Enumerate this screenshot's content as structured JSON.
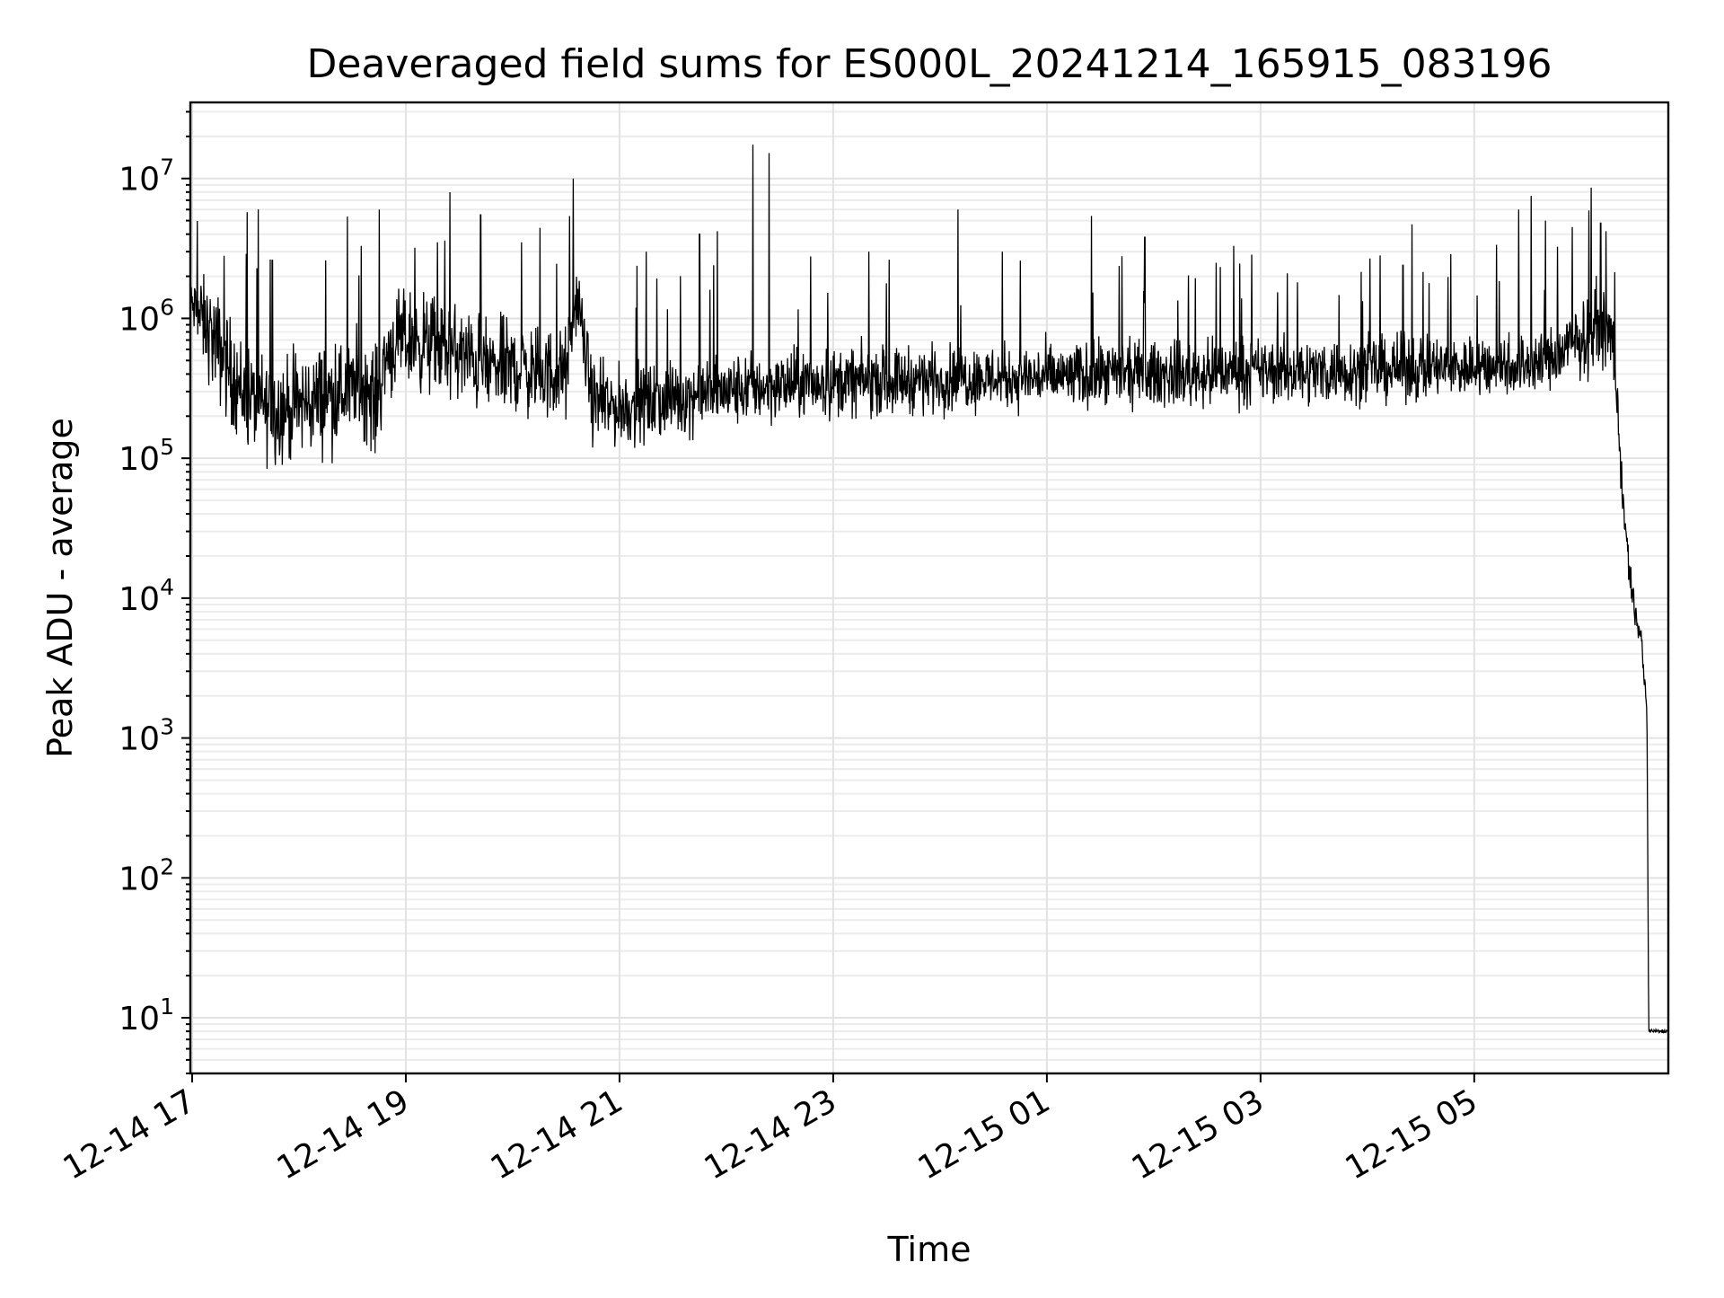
{
  "chart_data": {
    "type": "line",
    "title": "Deaveraged field sums for ES000L_20241214_165915_083196",
    "xlabel": "Time",
    "ylabel": "Peak ADU - average",
    "yscale": "log",
    "ylim": [
      4,
      35000000
    ],
    "xlim": [
      "2024-12-14 16:59",
      "2024-12-15 06:49"
    ],
    "grid": true,
    "y_ticks": [
      {
        "base": "10",
        "exp": "1",
        "value": 10
      },
      {
        "base": "10",
        "exp": "2",
        "value": 100
      },
      {
        "base": "10",
        "exp": "3",
        "value": 1000
      },
      {
        "base": "10",
        "exp": "4",
        "value": 10000
      },
      {
        "base": "10",
        "exp": "5",
        "value": 100000
      },
      {
        "base": "10",
        "exp": "6",
        "value": 1000000
      },
      {
        "base": "10",
        "exp": "7",
        "value": 10000000
      }
    ],
    "x_ticks": [
      {
        "label": "12-14 17",
        "value": "2024-12-14 17:00"
      },
      {
        "label": "12-14 19",
        "value": "2024-12-14 19:00"
      },
      {
        "label": "12-14 21",
        "value": "2024-12-14 21:00"
      },
      {
        "label": "12-14 23",
        "value": "2024-12-14 23:00"
      },
      {
        "label": "12-15 01",
        "value": "2024-12-15 01:00"
      },
      {
        "label": "12-15 03",
        "value": "2024-12-15 03:00"
      },
      {
        "label": "12-15 05",
        "value": "2024-12-15 05:00"
      }
    ],
    "series": [
      {
        "color": "#000000",
        "x": [
          "2024-12-14 16:59",
          "2024-12-14 17:05",
          "2024-12-14 17:12",
          "2024-12-14 17:20",
          "2024-12-14 17:28",
          "2024-12-14 17:36",
          "2024-12-14 17:45",
          "2024-12-14 17:55",
          "2024-12-14 18:05",
          "2024-12-14 18:15",
          "2024-12-14 18:25",
          "2024-12-14 18:35",
          "2024-12-14 18:43",
          "2024-12-14 18:50",
          "2024-12-14 19:00",
          "2024-12-14 19:15",
          "2024-12-14 19:30",
          "2024-12-14 19:45",
          "2024-12-14 20:00",
          "2024-12-14 20:15",
          "2024-12-14 20:30",
          "2024-12-14 20:36",
          "2024-12-14 20:45",
          "2024-12-14 21:00",
          "2024-12-14 21:20",
          "2024-12-14 21:40",
          "2024-12-14 22:00",
          "2024-12-14 22:15",
          "2024-12-14 22:30",
          "2024-12-14 22:45",
          "2024-12-14 23:00",
          "2024-12-14 23:30",
          "2024-12-15 00:00",
          "2024-12-15 00:30",
          "2024-12-15 01:00",
          "2024-12-15 01:30",
          "2024-12-15 02:00",
          "2024-12-15 02:30",
          "2024-12-15 03:00",
          "2024-12-15 03:30",
          "2024-12-15 04:00",
          "2024-12-15 04:30",
          "2024-12-15 05:00",
          "2024-12-15 05:20",
          "2024-12-15 05:40",
          "2024-12-15 06:00",
          "2024-12-15 06:10",
          "2024-12-15 06:18",
          "2024-12-15 06:22",
          "2024-12-15 06:26",
          "2024-12-15 06:30",
          "2024-12-15 06:34",
          "2024-12-15 06:37",
          "2024-12-15 06:38",
          "2024-12-15 06:41",
          "2024-12-15 06:45",
          "2024-12-15 06:49"
        ],
        "y": [
          1300000,
          1000000,
          700000,
          450000,
          300000,
          250000,
          220000,
          230000,
          250000,
          280000,
          300000,
          350000,
          250000,
          600000,
          700000,
          650000,
          550000,
          450000,
          450000,
          400000,
          400000,
          1500000,
          250000,
          230000,
          250000,
          280000,
          300000,
          320000,
          330000,
          340000,
          350000,
          360000,
          370000,
          380000,
          380000,
          390000,
          400000,
          400000,
          420000,
          420000,
          430000,
          440000,
          450000,
          470000,
          480000,
          700000,
          900000,
          700000,
          100000,
          20000,
          8000,
          5000,
          1500,
          8,
          8,
          8,
          8
        ],
        "variability": [
          1.6,
          2.8,
          3.5,
          3.6,
          3.5,
          3.5,
          3.5,
          3.5,
          3.5,
          3.5,
          3.5,
          3.5,
          3.5,
          3.2,
          3.2,
          3.2,
          3.2,
          3.2,
          3.0,
          3.0,
          3.0,
          2.0,
          2.6,
          2.6,
          2.5,
          2.4,
          2.4,
          2.3,
          2.3,
          2.3,
          2.3,
          2.2,
          2.2,
          2.2,
          2.2,
          2.2,
          2.2,
          2.2,
          2.2,
          2.2,
          2.2,
          2.2,
          2.2,
          2.2,
          2.2,
          2.4,
          2.6,
          2.0,
          1.8,
          1.6,
          1.5,
          1.4,
          1.3,
          1.05,
          1.05,
          1.05,
          1.05
        ],
        "spikes": [
          {
            "x": "2024-12-14 17:18",
            "y": 2800000
          },
          {
            "x": "2024-12-14 17:45",
            "y": 2600000
          },
          {
            "x": "2024-12-14 18:15",
            "y": 2600000
          },
          {
            "x": "2024-12-14 18:35",
            "y": 3300000
          },
          {
            "x": "2024-12-14 18:45",
            "y": 6000000
          },
          {
            "x": "2024-12-14 19:05",
            "y": 3200000
          },
          {
            "x": "2024-12-14 19:22",
            "y": 3600000
          },
          {
            "x": "2024-12-14 19:42",
            "y": 5500000
          },
          {
            "x": "2024-12-14 20:05",
            "y": 3500000
          },
          {
            "x": "2024-12-14 20:34",
            "y": 10000000
          },
          {
            "x": "2024-12-14 21:15",
            "y": 3000000
          },
          {
            "x": "2024-12-14 21:45",
            "y": 4000000
          },
          {
            "x": "2024-12-14 21:55",
            "y": 4200000
          },
          {
            "x": "2024-12-14 22:15",
            "y": 17500000
          },
          {
            "x": "2024-12-14 22:24",
            "y": 15200000
          },
          {
            "x": "2024-12-14 23:20",
            "y": 3000000
          },
          {
            "x": "2024-12-15 00:10",
            "y": 6000000
          },
          {
            "x": "2024-12-15 00:35",
            "y": 3000000
          },
          {
            "x": "2024-12-15 01:25",
            "y": 5400000
          },
          {
            "x": "2024-12-15 01:55",
            "y": 3800000
          },
          {
            "x": "2024-12-15 02:35",
            "y": 2500000
          },
          {
            "x": "2024-12-15 02:45",
            "y": 3300000
          },
          {
            "x": "2024-12-15 03:15",
            "y": 2100000
          },
          {
            "x": "2024-12-15 04:20",
            "y": 2400000
          },
          {
            "x": "2024-12-15 04:25",
            "y": 4700000
          },
          {
            "x": "2024-12-15 05:25",
            "y": 6000000
          },
          {
            "x": "2024-12-15 05:32",
            "y": 7500000
          },
          {
            "x": "2024-12-15 05:40",
            "y": 5000000
          },
          {
            "x": "2024-12-15 05:55",
            "y": 4500000
          },
          {
            "x": "2024-12-15 06:11",
            "y": 4800000
          },
          {
            "x": "2024-12-15 06:14",
            "y": 4200000
          }
        ]
      }
    ]
  }
}
